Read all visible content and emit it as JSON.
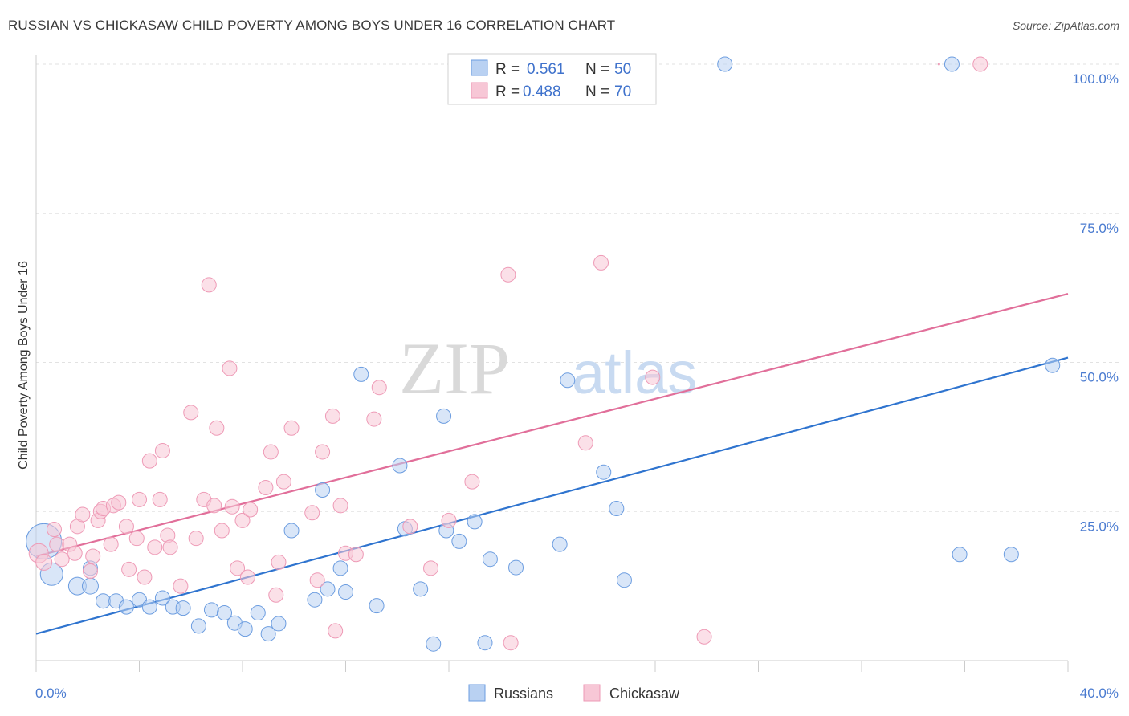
{
  "title": "RUSSIAN VS CHICKASAW CHILD POVERTY AMONG BOYS UNDER 16 CORRELATION CHART",
  "source": "Source: ZipAtlas.com",
  "watermark": {
    "zip": "ZIP",
    "atlas": "atlas"
  },
  "chart_data": {
    "type": "scatter",
    "xlabel": "",
    "ylabel": "Child Poverty Among Boys Under 16",
    "xlim": [
      0,
      40
    ],
    "ylim": [
      0,
      100
    ],
    "x_tick_labels": [
      "0.0%",
      "40.0%"
    ],
    "y_tick_labels": [
      "25.0%",
      "50.0%",
      "75.0%",
      "100.0%"
    ],
    "y_ticks": [
      25,
      50,
      75,
      100
    ],
    "legend": [
      {
        "name": "Russians",
        "r_label": "R =",
        "r_value": "0.561",
        "n_label": "N =",
        "n_value": "50"
      },
      {
        "name": "Chickasaw",
        "r_label": "R =",
        "r_value": "0.488",
        "n_label": "N =",
        "n_value": "70"
      }
    ],
    "series": [
      {
        "name": "Russians",
        "color": "#6c9de0",
        "fill": "#b9d1f2",
        "line_color": "#2f74cf",
        "trend": {
          "x0": 0,
          "y0": 4.5,
          "x1": 40,
          "y1": 50.8
        },
        "points": [
          [
            0.3,
            20.0,
            22
          ],
          [
            0.6,
            14.5,
            14
          ],
          [
            1.6,
            12.5,
            11
          ],
          [
            2.1,
            12.5,
            10
          ],
          [
            2.1,
            15.5,
            9
          ],
          [
            2.6,
            10.0,
            9
          ],
          [
            3.1,
            10.0,
            9
          ],
          [
            3.5,
            9.0,
            9
          ],
          [
            4.0,
            10.2,
            9
          ],
          [
            4.4,
            9.0,
            9
          ],
          [
            4.9,
            10.5,
            9
          ],
          [
            5.3,
            9.0,
            9
          ],
          [
            5.7,
            8.8,
            9
          ],
          [
            6.3,
            5.8,
            9
          ],
          [
            6.8,
            8.5,
            9
          ],
          [
            7.3,
            8.0,
            9
          ],
          [
            7.7,
            6.3,
            9
          ],
          [
            8.1,
            5.3,
            9
          ],
          [
            8.6,
            8.0,
            9
          ],
          [
            9.0,
            4.5,
            9
          ],
          [
            9.4,
            6.2,
            9
          ],
          [
            9.9,
            21.8,
            9
          ],
          [
            10.8,
            10.2,
            9
          ],
          [
            11.3,
            12.0,
            9
          ],
          [
            11.1,
            28.6,
            9
          ],
          [
            11.8,
            15.5,
            9
          ],
          [
            12.0,
            11.5,
            9
          ],
          [
            12.6,
            48.0,
            9
          ],
          [
            13.2,
            9.2,
            9
          ],
          [
            14.1,
            32.7,
            9
          ],
          [
            14.3,
            22.1,
            9
          ],
          [
            14.9,
            12.0,
            9
          ],
          [
            15.4,
            2.8,
            9
          ],
          [
            15.8,
            41.0,
            9
          ],
          [
            15.9,
            21.8,
            9
          ],
          [
            16.4,
            20.0,
            9
          ],
          [
            17.0,
            23.3,
            9
          ],
          [
            17.4,
            3.0,
            9
          ],
          [
            17.6,
            17.0,
            9
          ],
          [
            18.6,
            15.6,
            9
          ],
          [
            20.3,
            19.5,
            9
          ],
          [
            20.6,
            47.0,
            9
          ],
          [
            22.0,
            31.6,
            9
          ],
          [
            22.5,
            25.5,
            9
          ],
          [
            22.8,
            13.5,
            9
          ],
          [
            26.7,
            100.0,
            9
          ],
          [
            35.5,
            100.0,
            9
          ],
          [
            35.8,
            17.8,
            9
          ],
          [
            37.8,
            17.8,
            9
          ],
          [
            39.4,
            49.5,
            9
          ]
        ]
      },
      {
        "name": "Chickasaw",
        "color": "#ee9ab6",
        "fill": "#f7c7d6",
        "line_color": "#e16f9a",
        "trend": {
          "x0": 0,
          "y0": 17.5,
          "x1": 40,
          "y1": 61.5
        },
        "points": [
          [
            0.1,
            18.0,
            12
          ],
          [
            0.3,
            16.5,
            10
          ],
          [
            0.7,
            22.0,
            9
          ],
          [
            0.8,
            19.5,
            9
          ],
          [
            1.0,
            17.0,
            9
          ],
          [
            1.3,
            19.5,
            9
          ],
          [
            1.5,
            18.0,
            9
          ],
          [
            1.6,
            22.5,
            9
          ],
          [
            1.8,
            24.5,
            9
          ],
          [
            2.1,
            15.0,
            9
          ],
          [
            2.2,
            17.5,
            9
          ],
          [
            2.4,
            23.5,
            9
          ],
          [
            2.5,
            25.0,
            9
          ],
          [
            2.6,
            25.5,
            9
          ],
          [
            2.9,
            19.5,
            9
          ],
          [
            3.0,
            26.0,
            9
          ],
          [
            3.2,
            26.5,
            9
          ],
          [
            3.5,
            22.5,
            9
          ],
          [
            3.6,
            15.3,
            9
          ],
          [
            3.9,
            20.5,
            9
          ],
          [
            4.0,
            27.0,
            9
          ],
          [
            4.2,
            14.0,
            9
          ],
          [
            4.4,
            33.5,
            9
          ],
          [
            4.6,
            19.0,
            9
          ],
          [
            4.8,
            27.0,
            9
          ],
          [
            4.9,
            35.2,
            9
          ],
          [
            5.1,
            21.0,
            9
          ],
          [
            5.2,
            19.0,
            9
          ],
          [
            5.6,
            12.5,
            9
          ],
          [
            6.0,
            41.6,
            9
          ],
          [
            6.2,
            20.5,
            9
          ],
          [
            6.5,
            27.0,
            9
          ],
          [
            6.7,
            63.0,
            9
          ],
          [
            6.9,
            26.0,
            9
          ],
          [
            7.0,
            39.0,
            9
          ],
          [
            7.2,
            21.8,
            9
          ],
          [
            7.5,
            49.0,
            9
          ],
          [
            7.6,
            25.8,
            9
          ],
          [
            7.8,
            15.5,
            9
          ],
          [
            8.0,
            23.5,
            9
          ],
          [
            8.2,
            14.0,
            9
          ],
          [
            8.3,
            25.3,
            9
          ],
          [
            8.9,
            29.0,
            9
          ],
          [
            9.1,
            35.0,
            9
          ],
          [
            9.3,
            11.0,
            9
          ],
          [
            9.4,
            16.5,
            9
          ],
          [
            9.6,
            30.0,
            9
          ],
          [
            9.9,
            39.0,
            9
          ],
          [
            10.7,
            24.8,
            9
          ],
          [
            10.9,
            13.5,
            9
          ],
          [
            11.1,
            35.0,
            9
          ],
          [
            11.5,
            41.0,
            9
          ],
          [
            11.6,
            5.0,
            9
          ],
          [
            11.8,
            26.0,
            9
          ],
          [
            12.0,
            18.0,
            9
          ],
          [
            12.4,
            17.8,
            9
          ],
          [
            13.1,
            40.5,
            9
          ],
          [
            13.3,
            45.8,
            9
          ],
          [
            14.5,
            22.5,
            9
          ],
          [
            15.3,
            15.5,
            9
          ],
          [
            16.0,
            23.5,
            9
          ],
          [
            16.9,
            30.0,
            9
          ],
          [
            18.3,
            64.7,
            9
          ],
          [
            18.4,
            3.0,
            9
          ],
          [
            21.3,
            36.5,
            9
          ],
          [
            21.9,
            66.7,
            9
          ],
          [
            23.9,
            47.5,
            9
          ],
          [
            25.9,
            4.0,
            9
          ],
          [
            35.0,
            100.0,
            1
          ],
          [
            36.6,
            100.0,
            9
          ]
        ]
      }
    ]
  }
}
